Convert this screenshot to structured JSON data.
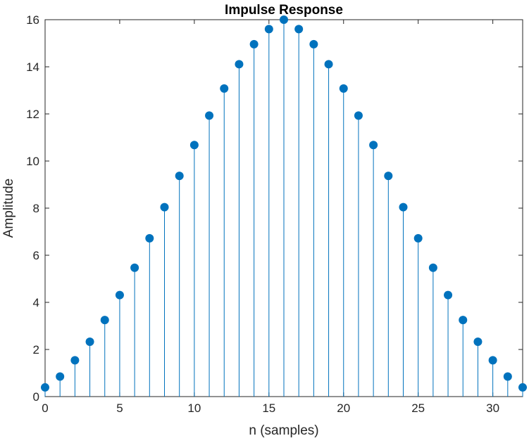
{
  "chart_data": {
    "type": "stem",
    "title": "Impulse Response",
    "xlabel": "n (samples)",
    "ylabel": "Amplitude",
    "xlim": [
      0,
      32
    ],
    "ylim": [
      0,
      16
    ],
    "xticks": [
      0,
      5,
      10,
      15,
      20,
      25,
      30
    ],
    "yticks": [
      0,
      2,
      4,
      6,
      8,
      10,
      12,
      14,
      16
    ],
    "grid": false,
    "color": "#0072BD",
    "series": [
      {
        "x": [
          0,
          1,
          2,
          3,
          4,
          5,
          6,
          7,
          8,
          9,
          10,
          11,
          12,
          13,
          14,
          15,
          16,
          17,
          18,
          19,
          20,
          21,
          22,
          23,
          24,
          25,
          26,
          27,
          28,
          29,
          30,
          31,
          32
        ],
        "values": [
          0.39,
          0.85,
          1.54,
          2.33,
          3.25,
          4.31,
          5.47,
          6.72,
          8.04,
          9.37,
          10.68,
          11.93,
          13.08,
          14.11,
          14.96,
          15.6,
          16.0,
          15.6,
          14.96,
          14.11,
          13.08,
          11.93,
          10.68,
          9.37,
          8.04,
          6.72,
          5.47,
          4.31,
          3.25,
          2.33,
          1.54,
          0.85,
          0.39
        ]
      }
    ]
  }
}
